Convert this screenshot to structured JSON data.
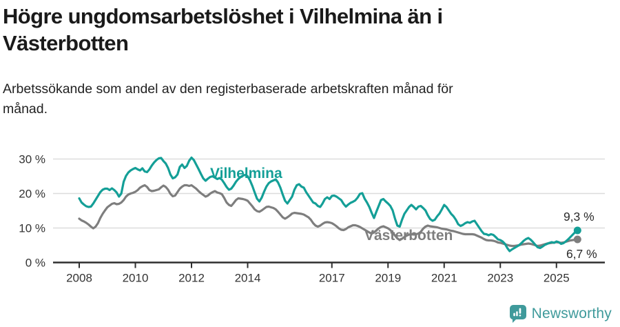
{
  "header": {
    "title": "Högre ungdomsarbetslöshet i Vilhelmina än i Västerbotten",
    "title_lines": [
      "Högre ungdomsarbetslöshet i Vilhelmina än i",
      "Västerbotten"
    ],
    "subtitle": "Arbetssökande som andel av den registerbaserade arbetskraften månad för månad.",
    "subtitle_lines": [
      "Arbetssökande som andel av den registerbaserade arbetskraften månad för",
      "månad."
    ]
  },
  "footer": {
    "brand": "Newsworthy",
    "logo_icon": "bar-chart-speech-bubble-icon",
    "brand_color": "#3f9a9b"
  },
  "chart_data": {
    "type": "line",
    "frequency": "monthly",
    "x_start": {
      "year": 2008,
      "month": 1
    },
    "x_end": {
      "year": 2025,
      "month": 10
    },
    "ylim": [
      0,
      32
    ],
    "grid": "horizontal",
    "legend_position": "inline-labels",
    "yticks": [
      {
        "value": 0,
        "label": "0 %"
      },
      {
        "value": 10,
        "label": "10 %"
      },
      {
        "value": 20,
        "label": "20 %"
      },
      {
        "value": 30,
        "label": "30 %"
      }
    ],
    "xticks": [
      {
        "value": 2008,
        "label": "2008"
      },
      {
        "value": 2010,
        "label": "2010"
      },
      {
        "value": 2012,
        "label": "2012"
      },
      {
        "value": 2014,
        "label": "2014"
      },
      {
        "value": 2017,
        "label": "2017"
      },
      {
        "value": 2019,
        "label": "2019"
      },
      {
        "value": 2021,
        "label": "2021"
      },
      {
        "value": 2023,
        "label": "2023"
      },
      {
        "value": 2025,
        "label": "2025"
      }
    ],
    "axis_color": "#2e2e2e",
    "grid_color": "#dcdcdc",
    "tick_label_color": "#333333",
    "series": [
      {
        "name": "Vilhelmina",
        "color": "#149f97",
        "end_label": "9,3 %",
        "end_value": 9.3,
        "values": [
          18.6,
          17.4,
          16.8,
          16.3,
          16.1,
          16.2,
          17.1,
          18.2,
          19.3,
          20.4,
          21.1,
          21.4,
          21.4,
          21.0,
          21.5,
          21.0,
          20.3,
          19.1,
          20.0,
          23.4,
          25.1,
          26.1,
          26.7,
          27.1,
          27.4,
          27.0,
          26.7,
          27.3,
          26.4,
          26.2,
          27.0,
          28.1,
          29.0,
          29.7,
          30.2,
          30.3,
          29.4,
          28.7,
          27.4,
          25.5,
          24.4,
          24.7,
          25.5,
          27.7,
          28.4,
          27.4,
          28.0,
          29.5,
          30.4,
          29.7,
          28.4,
          27.1,
          25.7,
          24.4,
          23.7,
          24.3,
          24.8,
          25.0,
          24.6,
          24.2,
          24.5,
          24.0,
          23.0,
          21.9,
          21.1,
          21.4,
          22.3,
          23.4,
          24.2,
          24.8,
          25.2,
          25.4,
          25.0,
          23.8,
          22.2,
          20.3,
          18.5,
          17.7,
          18.8,
          20.5,
          22.0,
          23.0,
          23.5,
          23.8,
          24.1,
          23.2,
          21.7,
          19.7,
          17.9,
          17.1,
          18.1,
          19.1,
          21.1,
          22.4,
          22.7,
          22.0,
          21.7,
          20.4,
          19.4,
          18.4,
          17.4,
          17.1,
          16.4,
          16.1,
          17.1,
          18.4,
          18.9,
          18.4,
          19.3,
          19.4,
          19.1,
          18.6,
          18.1,
          17.0,
          16.2,
          16.8,
          17.3,
          17.6,
          18.0,
          18.8,
          19.9,
          20.1,
          18.5,
          17.4,
          16.1,
          14.4,
          12.9,
          14.7,
          16.4,
          18.1,
          18.4,
          17.7,
          17.1,
          16.4,
          15.1,
          12.7,
          10.7,
          10.4,
          12.4,
          14.1,
          15.1,
          16.1,
          16.7,
          16.1,
          15.4,
          16.2,
          16.4,
          15.8,
          15.1,
          13.7,
          12.6,
          12.1,
          12.4,
          13.4,
          14.2,
          15.4,
          16.7,
          16.1,
          15.1,
          14.1,
          13.4,
          12.4,
          11.1,
          10.6,
          10.9,
          11.4,
          11.7,
          11.5,
          11.9,
          12.1,
          11.1,
          10.1,
          9.1,
          8.3,
          8.2,
          7.9,
          8.2,
          8.0,
          7.4,
          6.7,
          6.5,
          6.1,
          5.4,
          4.2,
          3.3,
          3.8,
          4.2,
          4.6,
          5.0,
          5.6,
          6.3,
          6.8,
          7.1,
          6.6,
          5.9,
          5.1,
          4.4,
          4.2,
          4.6,
          5.1,
          5.4,
          5.7,
          5.9,
          5.7,
          6.1,
          5.9,
          5.4,
          5.6,
          6.1,
          6.7,
          7.4,
          8.1,
          8.8,
          9.3
        ]
      },
      {
        "name": "Västerbotten",
        "color": "#7e7e7e",
        "end_label": "6,7 %",
        "end_value": 6.7,
        "values": [
          12.7,
          12.2,
          11.9,
          11.5,
          11.0,
          10.4,
          9.9,
          10.4,
          11.4,
          12.9,
          14.1,
          15.1,
          16.0,
          16.5,
          17.0,
          17.2,
          16.9,
          17.0,
          17.4,
          18.1,
          19.1,
          19.7,
          20.0,
          20.2,
          20.5,
          21.0,
          21.7,
          22.1,
          22.4,
          21.9,
          21.0,
          20.7,
          20.8,
          21.0,
          21.2,
          21.8,
          22.3,
          21.9,
          21.1,
          19.9,
          19.2,
          19.4,
          20.4,
          21.4,
          22.0,
          22.4,
          22.4,
          22.2,
          22.4,
          21.9,
          21.4,
          20.7,
          20.1,
          19.6,
          19.1,
          19.4,
          20.0,
          20.4,
          20.7,
          20.3,
          20.1,
          19.8,
          18.7,
          17.4,
          16.7,
          16.4,
          17.2,
          18.1,
          18.6,
          18.5,
          18.4,
          18.2,
          17.9,
          17.1,
          16.3,
          15.4,
          14.9,
          14.7,
          15.1,
          15.6,
          16.1,
          16.2,
          16.0,
          15.8,
          15.4,
          14.7,
          13.9,
          13.1,
          12.7,
          13.1,
          13.6,
          14.2,
          14.4,
          14.3,
          14.2,
          14.1,
          13.9,
          13.5,
          13.1,
          12.4,
          11.4,
          10.7,
          10.4,
          10.7,
          11.2,
          11.6,
          11.7,
          11.6,
          11.4,
          11.0,
          10.5,
          9.9,
          9.5,
          9.4,
          9.7,
          10.2,
          10.5,
          10.8,
          10.8,
          10.6,
          10.3,
          9.9,
          9.5,
          9.1,
          8.7,
          8.4,
          8.7,
          9.3,
          9.9,
          10.3,
          10.5,
          10.2,
          9.9,
          9.4,
          8.7,
          7.8,
          7.0,
          6.5,
          6.9,
          7.4,
          7.8,
          8.1,
          8.2,
          8.1,
          8.2,
          8.4,
          8.9,
          9.8,
          10.4,
          10.7,
          10.5,
          10.4,
          10.3,
          10.2,
          10.0,
          9.8,
          9.7,
          9.6,
          9.4,
          9.2,
          9.1,
          8.9,
          8.7,
          8.5,
          8.3,
          8.2,
          8.2,
          8.2,
          8.2,
          8.1,
          7.8,
          7.5,
          7.2,
          6.8,
          6.5,
          6.4,
          6.4,
          6.3,
          6.1,
          5.8,
          5.7,
          5.5,
          5.3,
          5.1,
          4.9,
          4.8,
          4.8,
          4.9,
          5.0,
          5.2,
          5.3,
          5.4,
          5.5,
          5.4,
          5.2,
          5.0,
          4.8,
          4.9,
          5.1,
          5.3,
          5.5,
          5.6,
          5.7,
          5.8,
          5.9,
          5.8,
          5.7,
          5.8,
          6.0,
          6.2,
          6.4,
          6.5,
          6.6,
          6.7
        ]
      }
    ]
  }
}
